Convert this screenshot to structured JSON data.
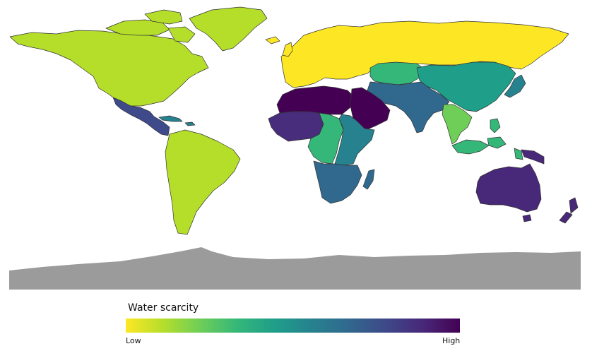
{
  "legend": {
    "title": "Water scarcity",
    "low_label": "Low",
    "high_label": "High",
    "gradient": [
      "#fde725",
      "#b5de2b",
      "#6ece58",
      "#35b779",
      "#1f9e89",
      "#26828e",
      "#31688e",
      "#3e4989",
      "#482878",
      "#440154"
    ]
  },
  "antarctica_color": "#9b9b9b",
  "regions": [
    {
      "id": "north-america",
      "color": "#b5de2b"
    },
    {
      "id": "greenland",
      "color": "#b5de2b"
    },
    {
      "id": "central-america",
      "color": "#3e4a89"
    },
    {
      "id": "caribbean",
      "color": "#26828e"
    },
    {
      "id": "south-america",
      "color": "#b5de2b"
    },
    {
      "id": "europe-russia",
      "color": "#fde725"
    },
    {
      "id": "central-asia",
      "color": "#35b779"
    },
    {
      "id": "east-asia",
      "color": "#1f9e89"
    },
    {
      "id": "japan",
      "color": "#26828e"
    },
    {
      "id": "south-asia",
      "color": "#31688e"
    },
    {
      "id": "mainland-southeast-asia",
      "color": "#6ece58"
    },
    {
      "id": "maritime-southeast-asia",
      "color": "#35b779"
    },
    {
      "id": "north-africa",
      "color": "#440154"
    },
    {
      "id": "middle-east",
      "color": "#440154"
    },
    {
      "id": "west-africa",
      "color": "#472d7b"
    },
    {
      "id": "central-africa",
      "color": "#35b779"
    },
    {
      "id": "east-africa",
      "color": "#26828e"
    },
    {
      "id": "southern-africa",
      "color": "#31688e"
    },
    {
      "id": "madagascar",
      "color": "#31688e"
    },
    {
      "id": "oceania",
      "color": "#482878"
    },
    {
      "id": "new-zealand",
      "color": "#482878"
    }
  ]
}
